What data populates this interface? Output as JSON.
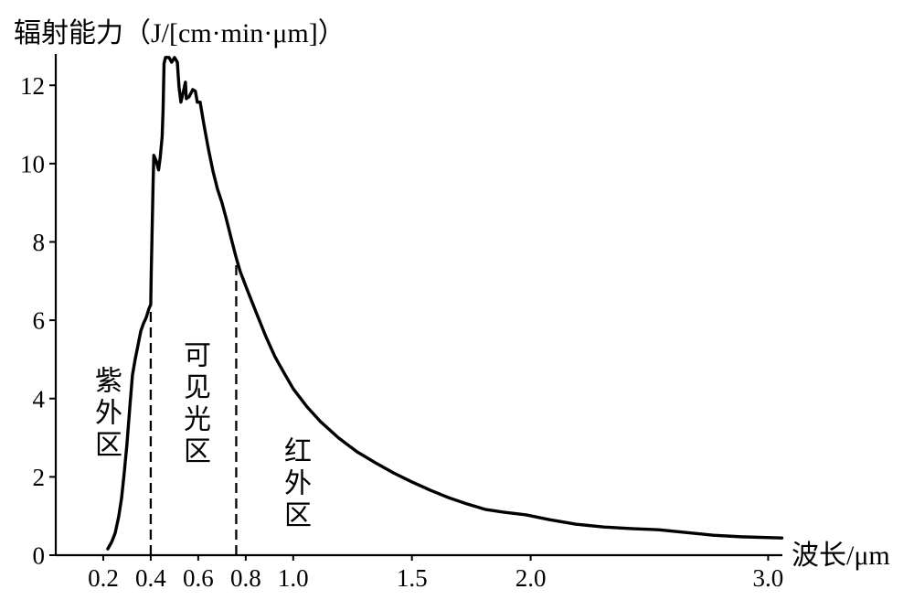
{
  "chart_data": {
    "type": "line",
    "xlabel": "波长/μm",
    "ylabel": "辐射能力（J/[cm·min·μm]）",
    "xlim": [
      0,
      3.06
    ],
    "ylim": [
      0,
      12.8
    ],
    "grid": false,
    "line_color": "#000000",
    "x_ticks": [
      0.2,
      0.4,
      0.6,
      0.8,
      1.0,
      1.5,
      2.0,
      3.0
    ],
    "x_tick_labels": [
      "0.2",
      "0.4",
      "0.6",
      "0.8",
      "1.0",
      "1.5",
      "2.0",
      "3.0"
    ],
    "y_ticks": [
      0,
      2,
      4,
      6,
      8,
      10,
      12
    ],
    "y_tick_labels": [
      "0",
      "2",
      "4",
      "6",
      "8",
      "10",
      "12"
    ],
    "series": [
      {
        "x": [
          0.219,
          0.235,
          0.25,
          0.265,
          0.277,
          0.288,
          0.3,
          0.312,
          0.323,
          0.335,
          0.346,
          0.358,
          0.369,
          0.381,
          0.392,
          0.4,
          0.402,
          0.406,
          0.41,
          0.413,
          0.423,
          0.433,
          0.44,
          0.448,
          0.452,
          0.456,
          0.462,
          0.477,
          0.488,
          0.5,
          0.512,
          0.519,
          0.527,
          0.538,
          0.546,
          0.55,
          0.562,
          0.577,
          0.588,
          0.596,
          0.608,
          0.623,
          0.642,
          0.662,
          0.681,
          0.7,
          0.719,
          0.738,
          0.758,
          0.777,
          0.808,
          0.846,
          0.885,
          0.923,
          0.962,
          1.0,
          1.058,
          1.115,
          1.192,
          1.269,
          1.346,
          1.423,
          1.5,
          1.577,
          1.654,
          1.731,
          1.808,
          1.885,
          1.981,
          2.077,
          2.192,
          2.308,
          2.423,
          2.538,
          2.654,
          2.769,
          2.885,
          3.058
        ],
        "y": [
          0.16,
          0.33,
          0.56,
          0.98,
          1.45,
          2.08,
          2.85,
          3.79,
          4.6,
          5.02,
          5.35,
          5.72,
          5.91,
          6.07,
          6.29,
          6.4,
          7.17,
          8.34,
          9.51,
          10.21,
          10.07,
          9.84,
          10.16,
          10.68,
          11.38,
          12.55,
          12.71,
          12.71,
          12.59,
          12.71,
          12.59,
          11.96,
          11.57,
          11.85,
          12.08,
          11.66,
          11.71,
          11.89,
          11.85,
          11.57,
          11.57,
          11.03,
          10.4,
          9.81,
          9.35,
          9.0,
          8.57,
          8.11,
          7.64,
          7.24,
          6.75,
          6.17,
          5.58,
          5.07,
          4.65,
          4.25,
          3.79,
          3.41,
          2.99,
          2.64,
          2.36,
          2.1,
          1.87,
          1.66,
          1.47,
          1.31,
          1.17,
          1.1,
          1.03,
          0.91,
          0.79,
          0.72,
          0.68,
          0.65,
          0.58,
          0.51,
          0.47,
          0.44
        ]
      }
    ],
    "region_boundaries": [
      0.4,
      0.76
    ],
    "regions": [
      {
        "label": "紫外区"
      },
      {
        "label": "可见光区"
      },
      {
        "label": "红外区"
      }
    ]
  }
}
